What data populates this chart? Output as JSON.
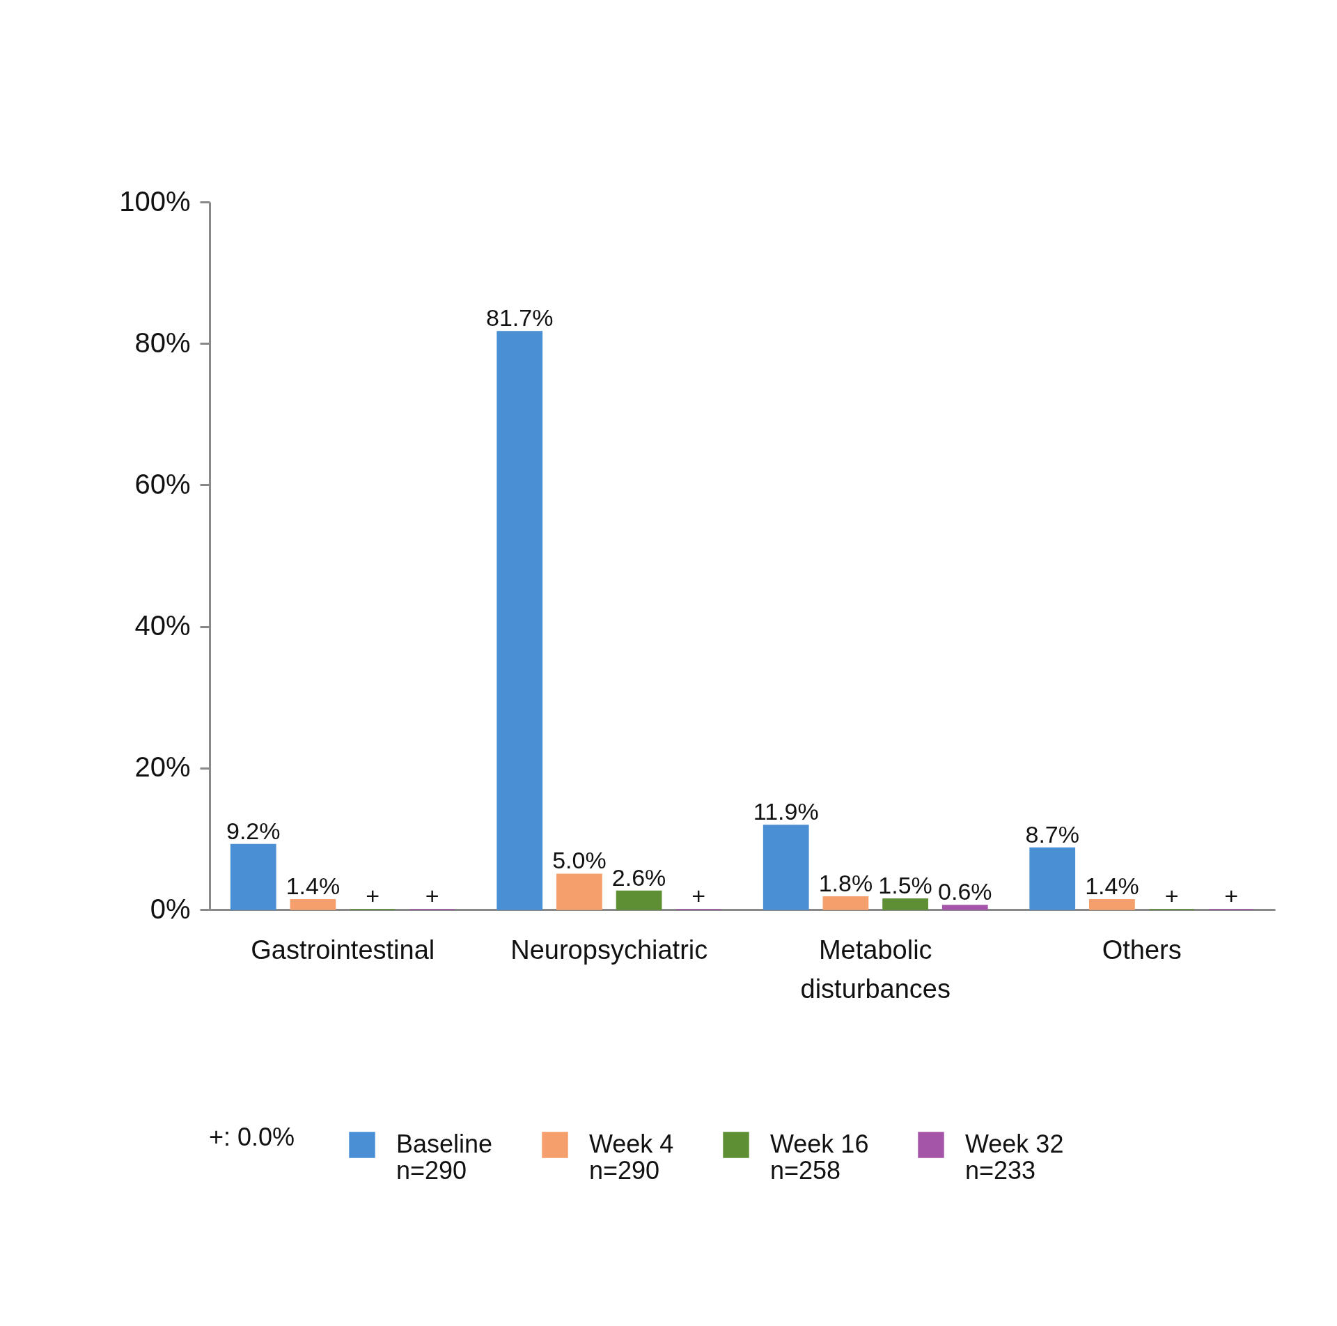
{
  "chart_data": {
    "type": "bar",
    "categories": [
      "Gastrointestinal",
      "Neuropsychiatric",
      "Metabolic disturbances",
      "Others"
    ],
    "series": [
      {
        "name": "Baseline\nn=290",
        "color": "#4a8fd4",
        "values": [
          9.2,
          81.7,
          11.9,
          8.7
        ],
        "value_labels": [
          "9.2%",
          "81.7%",
          "11.9%",
          "8.7%"
        ]
      },
      {
        "name": "Week 4\nn=290",
        "color": "#f5a06c",
        "values": [
          1.4,
          5.0,
          1.8,
          1.4
        ],
        "value_labels": [
          "1.4%",
          "5.0%",
          "1.8%",
          "1.4%"
        ]
      },
      {
        "name": "Week 16\nn=258",
        "color": "#5e8f34",
        "values": [
          0,
          2.6,
          1.5,
          0
        ],
        "value_labels": [
          "+",
          "2.6%",
          "1.5%",
          "+"
        ]
      },
      {
        "name": "Week 32\nn=233",
        "color": "#a455a8",
        "values": [
          0,
          0,
          0.6,
          0
        ],
        "value_labels": [
          "+",
          "+",
          "0.6%",
          "+"
        ]
      }
    ],
    "ylim": [
      0,
      100
    ],
    "yticks": [
      {
        "value": 0,
        "label": "0%"
      },
      {
        "value": 20,
        "label": "20%"
      },
      {
        "value": 40,
        "label": "40%"
      },
      {
        "value": 60,
        "label": "60%"
      },
      {
        "value": 80,
        "label": "80%"
      },
      {
        "value": 100,
        "label": "100%"
      }
    ],
    "grid": false,
    "legend": "bottom",
    "annotations": [
      "+: 0.0%"
    ]
  }
}
